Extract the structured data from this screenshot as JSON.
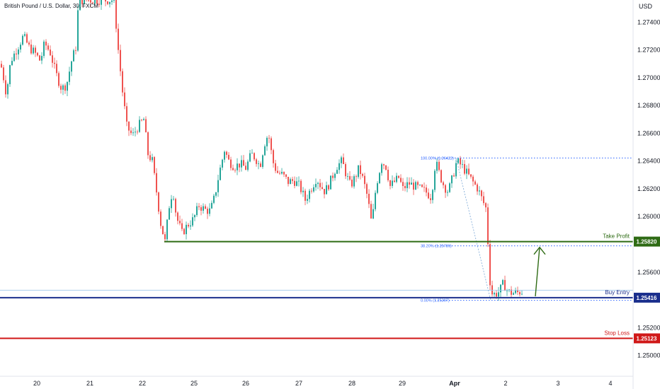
{
  "header": {
    "symbol": "British Pound / U.S. Dollar, 30, FXCM",
    "currency": "USD"
  },
  "chart_data": {
    "type": "candlestick",
    "ylim": [
      1.2485,
      1.2756
    ],
    "y_ticks": [
      1.274,
      1.272,
      1.27,
      1.268,
      1.266,
      1.264,
      1.262,
      1.26,
      1.256,
      1.252,
      1.25
    ],
    "y_tick_labels": [
      "1.27400",
      "1.27200",
      "1.27000",
      "1.26800",
      "1.26600",
      "1.26400",
      "1.26200",
      "1.26000",
      "1.25600",
      "1.25200",
      "1.25000"
    ],
    "x_labels": [
      "20",
      "21",
      "22",
      "25",
      "26",
      "27",
      "28",
      "29",
      "Apr",
      "2",
      "3",
      "4"
    ],
    "price_path": [
      [
        0,
        1.271
      ],
      [
        4,
        1.27
      ],
      [
        8,
        1.2688
      ],
      [
        14,
        1.2712
      ],
      [
        22,
        1.272
      ],
      [
        32,
        1.273
      ],
      [
        40,
        1.2722
      ],
      [
        48,
        1.2718
      ],
      [
        56,
        1.2712
      ],
      [
        62,
        1.2725
      ],
      [
        70,
        1.2718
      ],
      [
        78,
        1.2703
      ],
      [
        86,
        1.2692
      ],
      [
        93,
        1.2695
      ],
      [
        100,
        1.2712
      ],
      [
        106,
        1.2722
      ],
      [
        110,
        1.2756
      ],
      [
        160,
        1.2756
      ],
      [
        166,
        1.272
      ],
      [
        172,
        1.269
      ],
      [
        178,
        1.2665
      ],
      [
        186,
        1.2658
      ],
      [
        194,
        1.2665
      ],
      [
        202,
        1.267
      ],
      [
        208,
        1.2645
      ],
      [
        214,
        1.264
      ],
      [
        220,
        1.2618
      ],
      [
        226,
        1.2595
      ],
      [
        232,
        1.2582
      ],
      [
        238,
        1.2608
      ],
      [
        243,
        1.262
      ],
      [
        248,
        1.26
      ],
      [
        256,
        1.2588
      ],
      [
        264,
        1.2594
      ],
      [
        272,
        1.2598
      ],
      [
        280,
        1.2608
      ],
      [
        288,
        1.2605
      ],
      [
        296,
        1.2604
      ],
      [
        302,
        1.2614
      ],
      [
        308,
        1.263
      ],
      [
        316,
        1.2648
      ],
      [
        322,
        1.264
      ],
      [
        330,
        1.2636
      ],
      [
        338,
        1.2638
      ],
      [
        346,
        1.2635
      ],
      [
        354,
        1.2645
      ],
      [
        360,
        1.2642
      ],
      [
        366,
        1.2636
      ],
      [
        372,
        1.2652
      ],
      [
        378,
        1.266
      ],
      [
        384,
        1.264
      ],
      [
        390,
        1.2632
      ],
      [
        398,
        1.263
      ],
      [
        406,
        1.2625
      ],
      [
        414,
        1.2626
      ],
      [
        422,
        1.2622
      ],
      [
        430,
        1.2612
      ],
      [
        438,
        1.262
      ],
      [
        446,
        1.2628
      ],
      [
        452,
        1.2622
      ],
      [
        458,
        1.2618
      ],
      [
        466,
        1.2626
      ],
      [
        474,
        1.2636
      ],
      [
        482,
        1.264
      ],
      [
        488,
        1.263
      ],
      [
        494,
        1.2622
      ],
      [
        500,
        1.2628
      ],
      [
        506,
        1.2635
      ],
      [
        512,
        1.2626
      ],
      [
        518,
        1.2614
      ],
      [
        524,
        1.2594
      ],
      [
        530,
        1.2622
      ],
      [
        538,
        1.264
      ],
      [
        544,
        1.2636
      ],
      [
        550,
        1.2622
      ],
      [
        556,
        1.2625
      ],
      [
        562,
        1.2628
      ],
      [
        568,
        1.262
      ],
      [
        576,
        1.2624
      ],
      [
        584,
        1.2622
      ],
      [
        592,
        1.262
      ],
      [
        600,
        1.2618
      ],
      [
        608,
        1.2614
      ],
      [
        614,
        1.264
      ],
      [
        620,
        1.263
      ],
      [
        626,
        1.2622
      ],
      [
        632,
        1.2618
      ],
      [
        638,
        1.2628
      ],
      [
        644,
        1.264
      ],
      [
        652,
        1.2636
      ],
      [
        660,
        1.263
      ],
      [
        668,
        1.2624
      ],
      [
        674,
        1.262
      ],
      [
        680,
        1.2612
      ],
      [
        686,
        1.2605
      ],
      [
        689,
        1.257
      ],
      [
        692,
        1.2545
      ],
      [
        698,
        1.2544
      ],
      [
        704,
        1.2546
      ],
      [
        710,
        1.2552
      ],
      [
        716,
        1.2546
      ],
      [
        722,
        1.2545
      ],
      [
        728,
        1.2545
      ],
      [
        734,
        1.2546
      ],
      [
        738,
        1.2546
      ]
    ],
    "levels": [
      {
        "name": "Take Profit",
        "value": 1.2582,
        "label": "Take Profit",
        "tag": "1.25820",
        "color": "#2e6b14"
      },
      {
        "name": "Buy Entry",
        "value": 1.25416,
        "label": "Buy Entry",
        "tag": "1.25416",
        "color": "#1a2e8c"
      },
      {
        "name": "Stop Loss",
        "value": 1.25123,
        "label": "Stop Loss",
        "tag": "1.25123",
        "color": "#d01818"
      }
    ],
    "fibonacci": [
      {
        "label": "100.00% (1.26422)",
        "value": 1.26422
      },
      {
        "label": "38.20% (1.25789)",
        "value": 1.25789
      },
      {
        "label": "0.00% (1.25397)",
        "value": 1.25397
      }
    ],
    "current_price_line": 1.2547,
    "up_color": "#26a69a",
    "down_color": "#ef5350"
  }
}
